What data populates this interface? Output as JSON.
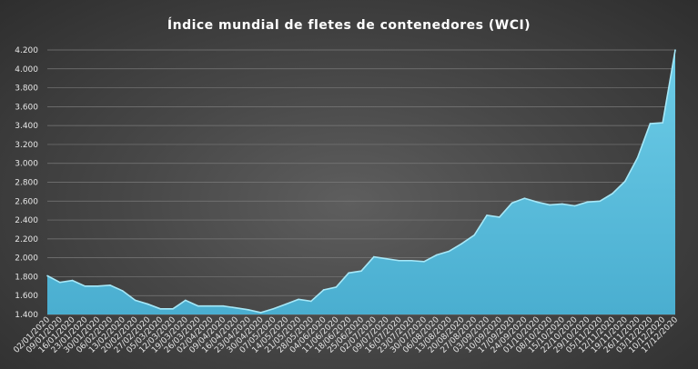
{
  "chart_data": {
    "type": "area",
    "title": "Índice mundial de fletes de contenedores (WCI)",
    "xlabel": "",
    "ylabel": "",
    "ylim": [
      1400,
      4200
    ],
    "yticks": [
      1400,
      1600,
      1800,
      2000,
      2200,
      2400,
      2600,
      2800,
      3000,
      3200,
      3400,
      3600,
      3800,
      4000,
      4200
    ],
    "ytick_labels": [
      "1.400",
      "1.600",
      "1.800",
      "2.000",
      "2.200",
      "2.400",
      "2.600",
      "2.800",
      "3.000",
      "3.200",
      "3.400",
      "3.600",
      "3.800",
      "4.000",
      "4.200"
    ],
    "grid": true,
    "colors": {
      "fill": "#5bbfdc",
      "line": "#a6e8f8",
      "grid": "#7a7a7a",
      "text": "#e6e6e6"
    },
    "x": [
      "02/01/2020",
      "09/01/2020",
      "16/01/2020",
      "23/01/2020",
      "30/01/2020",
      "06/02/2020",
      "13/02/2020",
      "20/02/2020",
      "27/02/2020",
      "05/03/2020",
      "12/03/2020",
      "19/03/2020",
      "26/03/2020",
      "02/04/2020",
      "09/04/2020",
      "16/04/2020",
      "23/04/2020",
      "30/04/2020",
      "07/05/2020",
      "14/05/2020",
      "21/05/2020",
      "28/05/2020",
      "04/06/2020",
      "11/06/2020",
      "18/06/2020",
      "25/06/2020",
      "02/07/2020",
      "09/07/2020",
      "16/07/2020",
      "23/07/2020",
      "30/07/2020",
      "06/08/2020",
      "13/08/2020",
      "20/08/2020",
      "27/08/2020",
      "03/09/2020",
      "10/09/2020",
      "17/09/2020",
      "24/09/2020",
      "01/10/2020",
      "08/10/2020",
      "15/10/2020",
      "22/10/2020",
      "29/10/2020",
      "05/11/2020",
      "12/11/2020",
      "19/11/2020",
      "26/11/2020",
      "03/12/2020",
      "10/12/2020",
      "17/12/2020"
    ],
    "values": [
      1810,
      1740,
      1760,
      1700,
      1700,
      1710,
      1650,
      1550,
      1510,
      1460,
      1460,
      1550,
      1490,
      1490,
      1490,
      1470,
      1450,
      1420,
      1460,
      1510,
      1560,
      1540,
      1660,
      1690,
      1840,
      1860,
      2010,
      1990,
      1970,
      1970,
      1960,
      2030,
      2070,
      2150,
      2240,
      2450,
      2430,
      2580,
      2630,
      2590,
      2560,
      2570,
      2550,
      2590,
      2600,
      2680,
      2810,
      3060,
      3420,
      3430,
      4200
    ]
  }
}
